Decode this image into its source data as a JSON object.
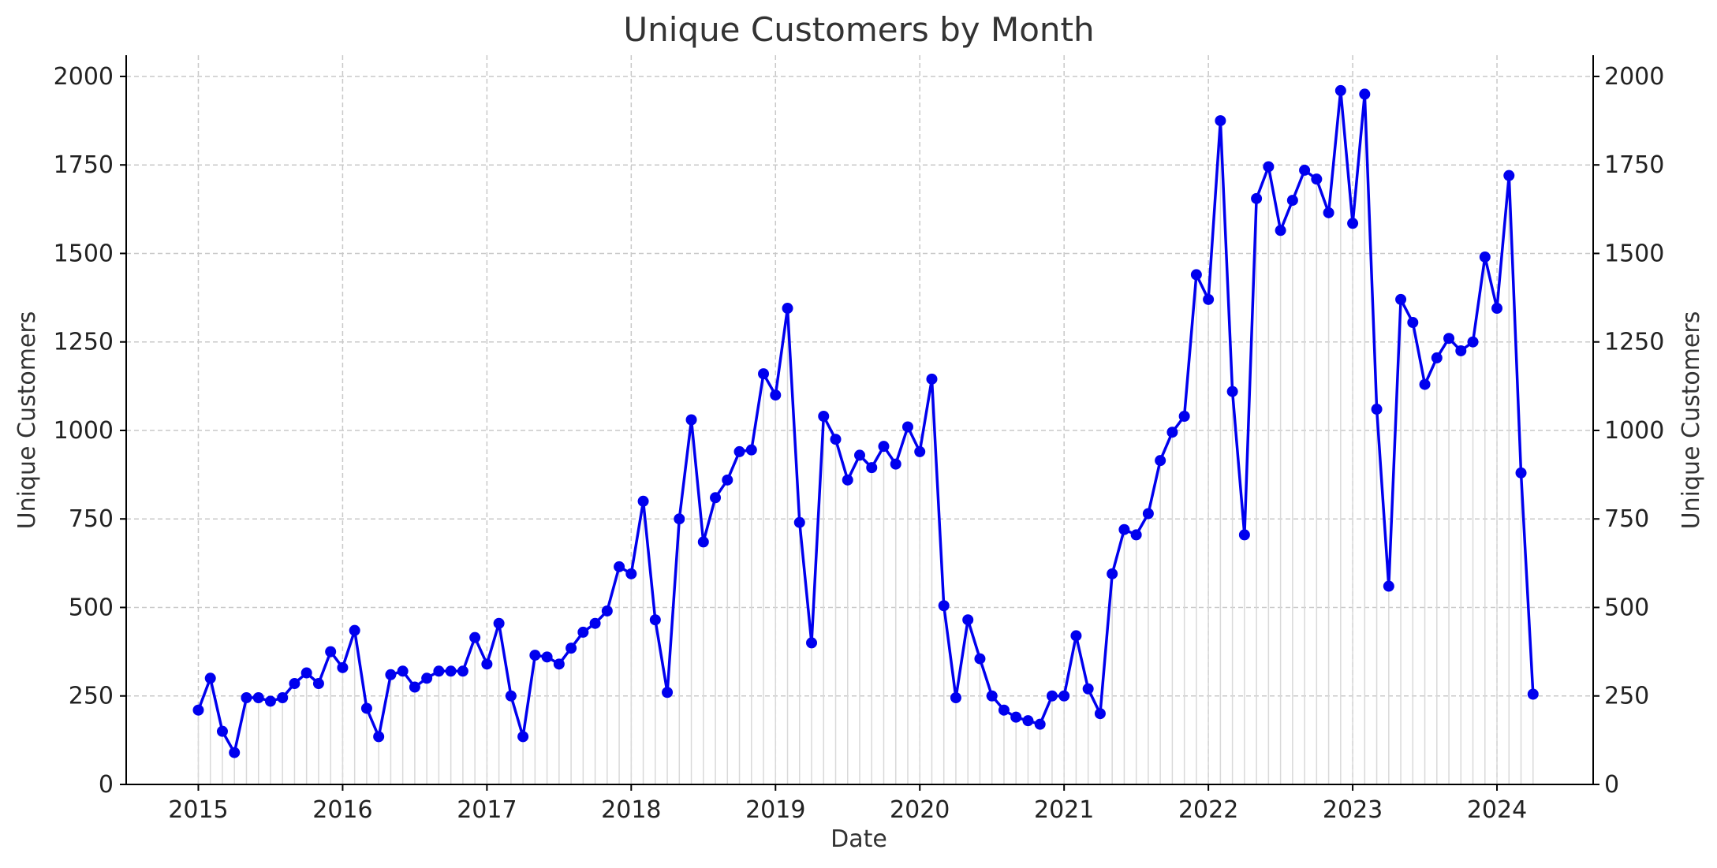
{
  "chart_data": {
    "type": "line",
    "title": "Unique Customers by Month",
    "xlabel": "Date",
    "ylabel": "Unique Customers",
    "ylabel_right": "Unique Customers",
    "x_ticks": [
      "2015",
      "2016",
      "2017",
      "2018",
      "2019",
      "2020",
      "2021",
      "2022",
      "2023",
      "2024"
    ],
    "y_ticks": [
      0,
      250,
      500,
      750,
      1000,
      1250,
      1500,
      1750,
      2000
    ],
    "y_ticks_right": [
      0,
      250,
      500,
      750,
      1000,
      1250,
      1500,
      1750,
      2000
    ],
    "ylim": [
      0,
      2060
    ],
    "xlim": [
      "2014-07",
      "2024-09"
    ],
    "grid": true,
    "colors": {
      "series": "#0000ee",
      "grid": "#c8c8c8",
      "stem": "#d9d9d9"
    },
    "x": [
      "2015-01",
      "2015-02",
      "2015-03",
      "2015-04",
      "2015-05",
      "2015-06",
      "2015-07",
      "2015-08",
      "2015-09",
      "2015-10",
      "2015-11",
      "2015-12",
      "2016-01",
      "2016-02",
      "2016-03",
      "2016-04",
      "2016-05",
      "2016-06",
      "2016-07",
      "2016-08",
      "2016-09",
      "2016-10",
      "2016-11",
      "2016-12",
      "2017-01",
      "2017-02",
      "2017-03",
      "2017-04",
      "2017-05",
      "2017-06",
      "2017-07",
      "2017-08",
      "2017-09",
      "2017-10",
      "2017-11",
      "2017-12",
      "2018-01",
      "2018-02",
      "2018-03",
      "2018-04",
      "2018-05",
      "2018-06",
      "2018-07",
      "2018-08",
      "2018-09",
      "2018-10",
      "2018-11",
      "2018-12",
      "2019-01",
      "2019-02",
      "2019-03",
      "2019-04",
      "2019-05",
      "2019-06",
      "2019-07",
      "2019-08",
      "2019-09",
      "2019-10",
      "2019-11",
      "2019-12",
      "2020-01",
      "2020-02",
      "2020-03",
      "2020-04",
      "2020-05",
      "2020-06",
      "2020-07",
      "2020-08",
      "2020-09",
      "2020-10",
      "2020-11",
      "2020-12",
      "2021-01",
      "2021-02",
      "2021-03",
      "2021-04",
      "2021-05",
      "2021-06",
      "2021-07",
      "2021-08",
      "2021-09",
      "2021-10",
      "2021-11",
      "2021-12",
      "2022-01",
      "2022-02",
      "2022-03",
      "2022-04",
      "2022-05",
      "2022-06",
      "2022-07",
      "2022-08",
      "2022-09",
      "2022-10",
      "2022-11",
      "2022-12",
      "2023-01",
      "2023-02",
      "2023-03",
      "2023-04",
      "2023-05",
      "2023-06",
      "2023-07",
      "2023-08",
      "2023-09",
      "2023-10",
      "2023-11",
      "2023-12",
      "2024-01",
      "2024-02",
      "2024-03",
      "2024-04"
    ],
    "series": [
      {
        "values": [
          210,
          300,
          150,
          90,
          245,
          245,
          235,
          245,
          285,
          315,
          285,
          375,
          330,
          435,
          215,
          135,
          310,
          320,
          275,
          300,
          320,
          320,
          320,
          415,
          340,
          455,
          250,
          135,
          365,
          360,
          340,
          385,
          430,
          455,
          490,
          615,
          595,
          800,
          465,
          260,
          750,
          1030,
          685,
          810,
          860,
          940,
          945,
          1160,
          1100,
          1345,
          740,
          400,
          1040,
          975,
          860,
          930,
          895,
          955,
          905,
          1010,
          940,
          1145,
          505,
          245,
          465,
          355,
          250,
          210,
          190,
          180,
          170,
          250,
          250,
          420,
          270,
          200,
          595,
          720,
          705,
          765,
          915,
          995,
          1040,
          1440,
          1370,
          1875,
          1110,
          705,
          1655,
          1745,
          1565,
          1650,
          1735,
          1710,
          1615,
          1960,
          1585,
          1950,
          1060,
          560,
          1370,
          1305,
          1130,
          1205,
          1260,
          1225,
          1250,
          1490,
          1345,
          1720,
          880,
          255
        ]
      }
    ]
  }
}
